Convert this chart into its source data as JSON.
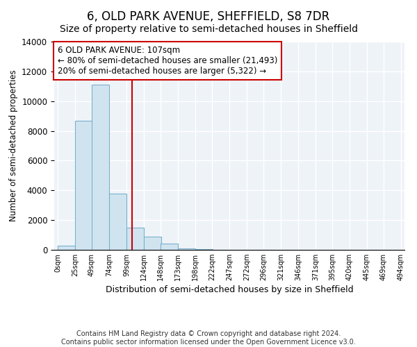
{
  "title": "6, OLD PARK AVENUE, SHEFFIELD, S8 7DR",
  "subtitle": "Size of property relative to semi-detached houses in Sheffield",
  "xlabel": "Distribution of semi-detached houses by size in Sheffield",
  "ylabel": "Number of semi-detached properties",
  "bar_color": "#d0e4f0",
  "bar_edge_color": "#7ab0cc",
  "background_color": "#eef3f8",
  "grid_color": "#ffffff",
  "annotation_box_color": "#cc0000",
  "vline_color": "#cc0000",
  "vline_x": 107,
  "annotation_title": "6 OLD PARK AVENUE: 107sqm",
  "annotation_line1": "← 80% of semi-detached houses are smaller (21,493)",
  "annotation_line2": "20% of semi-detached houses are larger (5,322) →",
  "bins_left": [
    0,
    25,
    49,
    74,
    99,
    124,
    148,
    173,
    198,
    222,
    247,
    272,
    296,
    321,
    346,
    371,
    395,
    420,
    445,
    469
  ],
  "bin_width": 25,
  "bin_heights": [
    300,
    8700,
    11100,
    3800,
    1500,
    900,
    400,
    100,
    50,
    0,
    0,
    0,
    0,
    0,
    0,
    0,
    0,
    0,
    0,
    0
  ],
  "ylim": [
    0,
    14000
  ],
  "xlim_min": -5,
  "xlim_max": 499,
  "xtick_labels": [
    "0sqm",
    "25sqm",
    "49sqm",
    "74sqm",
    "99sqm",
    "124sqm",
    "148sqm",
    "173sqm",
    "198sqm",
    "222sqm",
    "247sqm",
    "272sqm",
    "296sqm",
    "321sqm",
    "346sqm",
    "371sqm",
    "395sqm",
    "420sqm",
    "445sqm",
    "469sqm",
    "494sqm"
  ],
  "xtick_positions": [
    0,
    25,
    49,
    74,
    99,
    124,
    148,
    173,
    198,
    222,
    247,
    272,
    296,
    321,
    346,
    371,
    395,
    420,
    445,
    469,
    494
  ],
  "footer": "Contains HM Land Registry data © Crown copyright and database right 2024.\nContains public sector information licensed under the Open Government Licence v3.0.",
  "title_fontsize": 12,
  "subtitle_fontsize": 10,
  "footer_fontsize": 7
}
